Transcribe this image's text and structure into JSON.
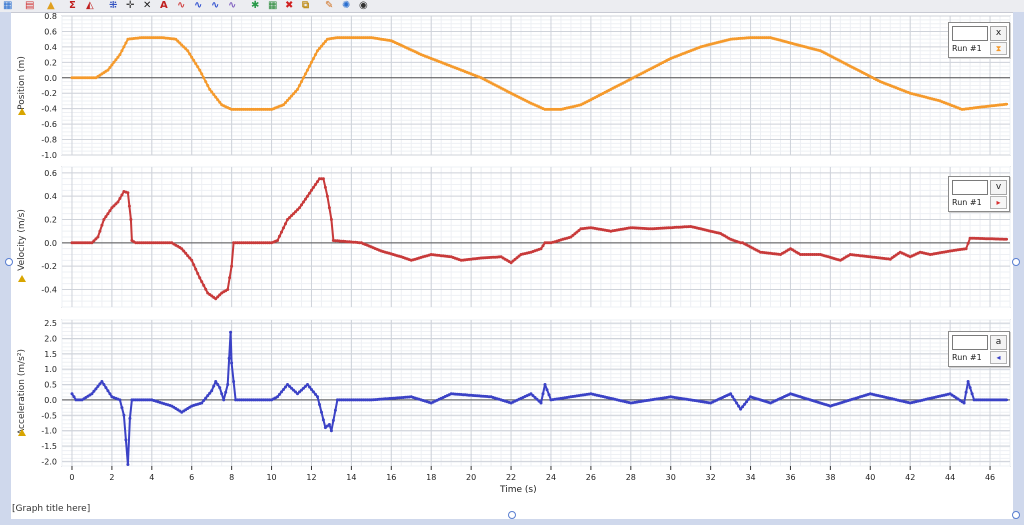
{
  "toolbar": {
    "icons": [
      {
        "name": "data-table-icon",
        "glyph": "▦",
        "color": "#2a6fd0"
      },
      {
        "name": "chart-options-icon",
        "glyph": "▤",
        "color": "#d03030"
      },
      {
        "name": "analyze-icon",
        "glyph": "▲",
        "color": "#e0a020"
      },
      {
        "name": "statistics-icon",
        "glyph": "Σ",
        "color": "#c02020"
      },
      {
        "name": "tangent-icon",
        "glyph": "◭",
        "color": "#c02020"
      },
      {
        "name": "examine-icon",
        "glyph": "⁜",
        "color": "#3050c0"
      },
      {
        "name": "crosshair-icon",
        "glyph": "✛",
        "color": "#444444"
      },
      {
        "name": "scale-icon",
        "glyph": "✕",
        "color": "#202020"
      },
      {
        "name": "annotate-icon",
        "glyph": "A",
        "color": "#c02020"
      },
      {
        "name": "curve-fit-icon",
        "glyph": "∿",
        "color": "#d04040"
      },
      {
        "name": "model-icon",
        "glyph": "∿",
        "color": "#3050d0"
      },
      {
        "name": "integral-icon",
        "glyph": "∿",
        "color": "#3050d0"
      },
      {
        "name": "smooth-icon",
        "glyph": "∿",
        "color": "#8060c0"
      },
      {
        "name": "interpolate-icon",
        "glyph": "✱",
        "color": "#2a9a4a"
      },
      {
        "name": "grid-icon",
        "glyph": "▦",
        "color": "#2a8a3a"
      },
      {
        "name": "delete-icon",
        "glyph": "✖",
        "color": "#d02020"
      },
      {
        "name": "select-icon",
        "glyph": "⧉",
        "color": "#c09020"
      },
      {
        "name": "pin-icon",
        "glyph": "✎",
        "color": "#d07020"
      },
      {
        "name": "settings-icon",
        "glyph": "✺",
        "color": "#2a6fd0"
      },
      {
        "name": "view-icon",
        "glyph": "◉",
        "color": "#333333"
      }
    ]
  },
  "graph_title": "[Graph title here]",
  "chart_data": [
    {
      "type": "line",
      "ylabel": "Position (m)",
      "ylim": [
        -1.0,
        0.8
      ],
      "yticks": [
        "0.8",
        "0.6",
        "0.4",
        "0.2",
        "0.0",
        "-0.2",
        "-0.4",
        "-0.6",
        "-0.8",
        "-1.0"
      ],
      "yticks_values": [
        0.8,
        0.6,
        0.4,
        0.2,
        0.0,
        -0.2,
        -0.4,
        -0.6,
        -0.8,
        -1.0
      ],
      "color": "#f59a2c",
      "legend": {
        "field": "x",
        "run": "Run #1",
        "marker_glyph": "⧗",
        "marker_color": "#f59a2c"
      },
      "series": [
        {
          "x": [
            0,
            1.2,
            1.8,
            2.4,
            2.8,
            3.5,
            4.5,
            5.2,
            5.8,
            6.4,
            6.9,
            7.5,
            8.0,
            9.0,
            10.0,
            10.6,
            11.3,
            11.8,
            12.3,
            12.8,
            13.3,
            14.0,
            15.0,
            16.0,
            17.5,
            19.0,
            20.5,
            22.0,
            23.0,
            23.7,
            24.5,
            25.5,
            27.0,
            28.5,
            30.0,
            31.5,
            33.0,
            34.0,
            35.0,
            36.0,
            37.5,
            39.0,
            40.5,
            42.0,
            43.5,
            44.6,
            45.5,
            46.9
          ],
          "y": [
            0,
            0,
            0.1,
            0.3,
            0.5,
            0.52,
            0.52,
            0.5,
            0.35,
            0.1,
            -0.15,
            -0.35,
            -0.41,
            -0.41,
            -0.41,
            -0.35,
            -0.15,
            0.1,
            0.35,
            0.5,
            0.52,
            0.52,
            0.52,
            0.48,
            0.3,
            0.15,
            0.0,
            -0.2,
            -0.33,
            -0.41,
            -0.41,
            -0.35,
            -0.15,
            0.05,
            0.25,
            0.4,
            0.5,
            0.52,
            0.52,
            0.45,
            0.35,
            0.15,
            -0.05,
            -0.2,
            -0.3,
            -0.41,
            -0.38,
            -0.34
          ]
        }
      ]
    },
    {
      "type": "line",
      "ylabel": "Velocity (m/s)",
      "ylim": [
        -0.55,
        0.65
      ],
      "yticks": [
        "0.6",
        "0.4",
        "0.2",
        "0.0",
        "-0.2",
        "-0.4"
      ],
      "yticks_values": [
        0.6,
        0.4,
        0.2,
        0.0,
        -0.2,
        -0.4
      ],
      "color": "#c83a3a",
      "legend": {
        "field": "v",
        "run": "Run #1",
        "marker_glyph": "▸",
        "marker_color": "#d83030"
      },
      "series": [
        {
          "x": [
            0,
            0.5,
            1,
            1.3,
            1.6,
            2.0,
            2.3,
            2.6,
            2.8,
            2.95,
            3.0,
            3.2,
            4.0,
            5.0,
            5.5,
            6.0,
            6.4,
            6.8,
            7.2,
            7.5,
            7.8,
            8.0,
            8.1,
            9.0,
            10.0,
            10.3,
            10.8,
            11.4,
            12.0,
            12.4,
            12.6,
            12.8,
            13.0,
            13.1,
            14.5,
            15.5,
            16.5,
            17.0,
            18.0,
            19.0,
            19.5,
            20.5,
            21.5,
            22.0,
            22.5,
            23.0,
            23.5,
            23.7,
            24.0,
            25.0,
            25.5,
            26.0,
            27.0,
            28.0,
            29.0,
            30.0,
            31.0,
            32.0,
            32.5,
            33.0,
            33.5,
            33.6,
            34.5,
            35.5,
            36.0,
            36.5,
            37.5,
            38.5,
            39.0,
            40.0,
            41.0,
            41.5,
            42.0,
            42.5,
            43.0,
            44.0,
            44.8,
            45.0,
            46.9
          ],
          "y": [
            0,
            0,
            0,
            0.05,
            0.2,
            0.3,
            0.35,
            0.44,
            0.43,
            0.2,
            0.02,
            0,
            0,
            0,
            -0.05,
            -0.15,
            -0.3,
            -0.43,
            -0.48,
            -0.43,
            -0.4,
            -0.2,
            0,
            0,
            0,
            0.02,
            0.2,
            0.3,
            0.45,
            0.55,
            0.55,
            0.4,
            0.2,
            0.02,
            0,
            -0.07,
            -0.12,
            -0.15,
            -0.1,
            -0.12,
            -0.15,
            -0.13,
            -0.12,
            -0.17,
            -0.1,
            -0.08,
            -0.05,
            0,
            0,
            0.05,
            0.12,
            0.13,
            0.1,
            0.13,
            0.12,
            0.13,
            0.14,
            0.1,
            0.08,
            0.03,
            0,
            0,
            -0.08,
            -0.1,
            -0.05,
            -0.1,
            -0.1,
            -0.15,
            -0.1,
            -0.12,
            -0.14,
            -0.08,
            -0.12,
            -0.08,
            -0.1,
            -0.07,
            -0.05,
            0.04,
            0.03
          ]
        }
      ]
    },
    {
      "type": "line",
      "ylabel": "Acceleration (m/s²)",
      "ylim": [
        -2.15,
        2.6
      ],
      "yticks": [
        "2.5",
        "2.0",
        "1.5",
        "1.0",
        "0.5",
        "0.0",
        "-0.5",
        "-1.0",
        "-1.5",
        "-2.0"
      ],
      "yticks_values": [
        2.5,
        2.0,
        1.5,
        1.0,
        0.5,
        0.0,
        -0.5,
        -1.0,
        -1.5,
        -2.0
      ],
      "color": "#3b42c6",
      "legend": {
        "field": "a",
        "run": "Run #1",
        "marker_glyph": "◂",
        "marker_color": "#3b42c6"
      },
      "series": [
        {
          "x": [
            0,
            0.2,
            0.5,
            1.0,
            1.5,
            2.0,
            2.4,
            2.6,
            2.7,
            2.8,
            2.9,
            3.0,
            3.2,
            4.0,
            5.0,
            5.5,
            6.0,
            6.5,
            7.0,
            7.2,
            7.4,
            7.6,
            7.8,
            7.95,
            8.0,
            8.2,
            9.0,
            10.0,
            10.3,
            10.8,
            11.3,
            11.8,
            12.3,
            12.5,
            12.7,
            12.9,
            13.0,
            13.3,
            15.0,
            17.0,
            18.0,
            19.0,
            21.0,
            22.0,
            23.0,
            23.5,
            23.7,
            24.0,
            26.0,
            28.0,
            30.0,
            32.0,
            33.0,
            33.5,
            34.0,
            35.0,
            36.0,
            38.0,
            40.0,
            42.0,
            44.0,
            44.7,
            44.9,
            45.2,
            46.9
          ],
          "y": [
            0.2,
            0,
            0,
            0.2,
            0.6,
            0.1,
            0,
            -0.5,
            -1.3,
            -2.1,
            -0.6,
            0,
            0,
            0,
            -0.2,
            -0.4,
            -0.2,
            -0.1,
            0.3,
            0.6,
            0.4,
            0,
            0.5,
            2.2,
            1.2,
            0,
            0,
            0,
            0.1,
            0.5,
            0.2,
            0.5,
            0.1,
            -0.4,
            -0.9,
            -0.8,
            -1.0,
            0,
            0,
            0.1,
            -0.1,
            0.2,
            0.1,
            -0.1,
            0.2,
            -0.1,
            0.5,
            0,
            0.2,
            -0.1,
            0.1,
            -0.1,
            0.2,
            -0.3,
            0.1,
            -0.1,
            0.2,
            -0.2,
            0.2,
            -0.1,
            0.2,
            -0.1,
            0.6,
            0,
            0
          ]
        }
      ]
    }
  ],
  "xaxis": {
    "label": "Time (s)",
    "xlim": [
      -0.5,
      47
    ],
    "ticks": [
      "0",
      "2",
      "4",
      "6",
      "8",
      "10",
      "12",
      "14",
      "16",
      "18",
      "20",
      "22",
      "24",
      "26",
      "28",
      "30",
      "32",
      "34",
      "36",
      "38",
      "40",
      "42",
      "44",
      "46"
    ],
    "tick_values": [
      0,
      2,
      4,
      6,
      8,
      10,
      12,
      14,
      16,
      18,
      20,
      22,
      24,
      26,
      28,
      30,
      32,
      34,
      36,
      38,
      40,
      42,
      44,
      46
    ]
  }
}
